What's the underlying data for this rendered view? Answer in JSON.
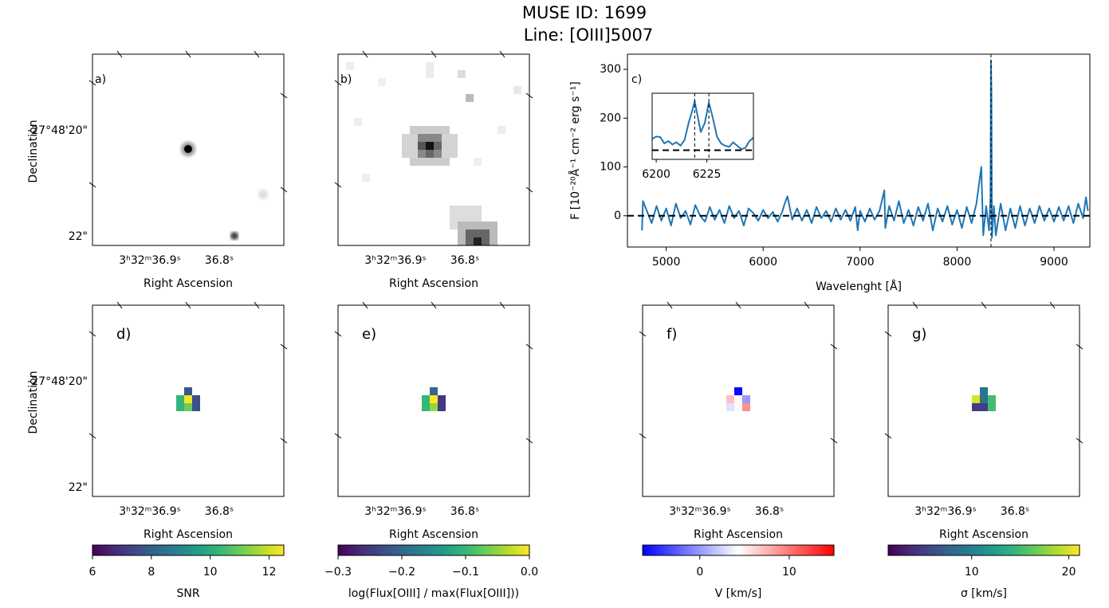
{
  "title": "MUSE ID: 1699",
  "subtitle": "Line: [OIII]5007",
  "chart_data": [
    {
      "type": "image",
      "label": "a)",
      "xlabel": "Right Ascension",
      "ylabel": "Declination",
      "xtick_labels": [
        "3ʰ32ᵐ36.9ˢ",
        "36.8ˢ"
      ],
      "ytick_labels": [
        "-27°48'20\"",
        "22\""
      ]
    },
    {
      "type": "image",
      "label": "b)",
      "xlabel": "Right Ascension",
      "xtick_labels": [
        "3ʰ32ᵐ36.9ˢ",
        "36.8ˢ"
      ]
    },
    {
      "type": "line",
      "label": "c)",
      "xlabel": "Wavelenght [Å]",
      "ylabel": "F [10⁻²⁰Å⁻¹ cm⁻² erg s⁻¹]",
      "color": "#1f77b4",
      "x": [
        4750,
        4760,
        4800,
        4850,
        4900,
        4950,
        5000,
        5050,
        5100,
        5150,
        5200,
        5250,
        5300,
        5350,
        5400,
        5450,
        5500,
        5550,
        5600,
        5650,
        5700,
        5750,
        5800,
        5850,
        5900,
        5950,
        6000,
        6050,
        6100,
        6150,
        6200,
        6217,
        6250,
        6300,
        6350,
        6400,
        6450,
        6500,
        6550,
        6600,
        6650,
        6700,
        6750,
        6800,
        6850,
        6900,
        6950,
        6975,
        7000,
        7050,
        7100,
        7150,
        7200,
        7250,
        7260,
        7300,
        7350,
        7400,
        7450,
        7500,
        7550,
        7600,
        7650,
        7700,
        7750,
        7800,
        7850,
        7900,
        7950,
        8000,
        8050,
        8100,
        8150,
        8200,
        8250,
        8270,
        8300,
        8330,
        8345,
        8350,
        8355,
        8360,
        8380,
        8400,
        8450,
        8500,
        8550,
        8600,
        8650,
        8700,
        8750,
        8800,
        8850,
        8900,
        8950,
        9000,
        9050,
        9100,
        9150,
        9200,
        9250,
        9300,
        9330,
        9350
      ],
      "values": [
        -30,
        30,
        10,
        -15,
        20,
        -10,
        15,
        -20,
        25,
        -5,
        10,
        -18,
        22,
        0,
        -12,
        18,
        -8,
        12,
        -15,
        20,
        -5,
        10,
        -20,
        15,
        5,
        -10,
        12,
        -5,
        8,
        -12,
        10,
        22,
        40,
        -8,
        15,
        -10,
        12,
        -15,
        18,
        -5,
        10,
        -12,
        15,
        -8,
        12,
        -10,
        18,
        -30,
        10,
        -12,
        15,
        -8,
        10,
        52,
        -25,
        20,
        -10,
        30,
        -15,
        12,
        -20,
        18,
        -10,
        25,
        -30,
        15,
        -12,
        20,
        -18,
        12,
        -25,
        18,
        -15,
        25,
        100,
        -40,
        20,
        -30,
        40,
        318,
        250,
        -45,
        20,
        -40,
        25,
        -30,
        15,
        -25,
        20,
        -20,
        15,
        -15,
        20,
        -10,
        15,
        -12,
        18,
        -10,
        20,
        -15,
        25,
        -5,
        38,
        10
      ],
      "xlim": [
        4600,
        9370
      ],
      "ylim": [
        -64,
        331
      ],
      "xticks": [
        5000,
        6000,
        7000,
        8000,
        9000
      ],
      "yticks": [
        0,
        100,
        200,
        300
      ],
      "hline": 0,
      "vline": 8350,
      "inset": {
        "x": [
          6198,
          6200,
          6202,
          6204,
          6206,
          6208,
          6210,
          6212,
          6214,
          6216,
          6218,
          6219,
          6220,
          6222,
          6224,
          6226,
          6228,
          6230,
          6232,
          6234,
          6236,
          6238,
          6240,
          6242,
          6244,
          6246,
          6248
        ],
        "values": [
          50,
          60,
          58,
          30,
          40,
          25,
          35,
          20,
          45,
          120,
          180,
          215,
          170,
          80,
          120,
          210,
          140,
          60,
          30,
          20,
          15,
          35,
          20,
          5,
          10,
          40,
          55
        ],
        "xlim": [
          6198,
          6248
        ],
        "ylim": [
          -40,
          250
        ],
        "xticks": [
          6200,
          6225
        ],
        "hline": 0,
        "vlines": [
          6219,
          6226
        ]
      }
    },
    {
      "type": "heatmap",
      "label": "d)",
      "xlabel": "Right Ascension",
      "ylabel": "Declination",
      "xtick_labels": [
        "3ʰ32ᵐ36.9ˢ",
        "36.8ˢ"
      ],
      "ytick_labels": [
        "-27°48'20\"",
        "22\""
      ],
      "pixels": [
        {
          "row": 0,
          "col": 1,
          "value": 7.8
        },
        {
          "row": 1,
          "col": 0,
          "value": 10.3
        },
        {
          "row": 1,
          "col": 1,
          "value": 12.4
        },
        {
          "row": 1,
          "col": 2,
          "value": 7.6
        },
        {
          "row": 2,
          "col": 0,
          "value": 10.3
        },
        {
          "row": 2,
          "col": 1,
          "value": 11
        },
        {
          "row": 2,
          "col": 2,
          "value": 7.6
        }
      ],
      "colorbar": {
        "cmap": "viridis",
        "lim": [
          6,
          12.5
        ],
        "ticks": [
          6,
          8,
          10,
          12
        ],
        "label": "SNR"
      }
    },
    {
      "type": "heatmap",
      "label": "e)",
      "xlabel": "Right Ascension",
      "xtick_labels": [
        "3ʰ32ᵐ36.9ˢ",
        "36.8ˢ"
      ],
      "pixels": [
        {
          "row": 0,
          "col": 1,
          "value": -0.2
        },
        {
          "row": 1,
          "col": 0,
          "value": -0.1
        },
        {
          "row": 1,
          "col": 1,
          "value": 0
        },
        {
          "row": 1,
          "col": 2,
          "value": -0.25
        },
        {
          "row": 2,
          "col": 0,
          "value": -0.1
        },
        {
          "row": 2,
          "col": 1,
          "value": -0.05
        },
        {
          "row": 2,
          "col": 2,
          "value": -0.25
        }
      ],
      "colorbar": {
        "cmap": "viridis",
        "lim": [
          -0.3,
          0
        ],
        "ticks": [
          {
            "value": -0.3,
            "label": "−0.3"
          },
          {
            "value": -0.2,
            "label": "−0.2"
          },
          {
            "value": -0.1,
            "label": "−0.1"
          },
          {
            "value": 0,
            "label": "0.0"
          }
        ],
        "label": "log(Flux[OIII] / max(Flux[OIII]))"
      }
    },
    {
      "type": "heatmap",
      "label": "f)",
      "xlabel": "Right Ascension",
      "xtick_labels": [
        "3ʰ32ᵐ36.9ˢ",
        "36.8ˢ"
      ],
      "pixels": [
        {
          "row": 0,
          "col": 1,
          "value": -6
        },
        {
          "row": 1,
          "col": 0,
          "value": 7
        },
        {
          "row": 1,
          "col": 1,
          "value": 4.5
        },
        {
          "row": 1,
          "col": 2,
          "value": 0
        },
        {
          "row": 2,
          "col": 0,
          "value": 3
        },
        {
          "row": 2,
          "col": 1,
          "value": 4.5
        },
        {
          "row": 2,
          "col": 2,
          "value": 9
        }
      ],
      "colorbar": {
        "cmap": "bwr",
        "lim": [
          -6.4,
          15
        ],
        "ticks": [
          0,
          10
        ],
        "label": "V [km/s]"
      }
    },
    {
      "type": "heatmap",
      "label": "g)",
      "xlabel": "Right Ascension",
      "xtick_labels": [
        "3ʰ32ᵐ36.9ˢ",
        "36.8ˢ"
      ],
      "pixels": [
        {
          "row": 0,
          "col": 1,
          "value": 9
        },
        {
          "row": 1,
          "col": 0,
          "value": 20
        },
        {
          "row": 1,
          "col": 1,
          "value": 9
        },
        {
          "row": 1,
          "col": 2,
          "value": 15
        },
        {
          "row": 2,
          "col": 0,
          "value": 5
        },
        {
          "row": 2,
          "col": 1,
          "value": 5
        },
        {
          "row": 2,
          "col": 2,
          "value": 15
        }
      ],
      "colorbar": {
        "cmap": "viridis",
        "lim": [
          1.4,
          21.1
        ],
        "ticks": [
          10,
          20
        ],
        "label": "σ [km/s]"
      }
    }
  ]
}
